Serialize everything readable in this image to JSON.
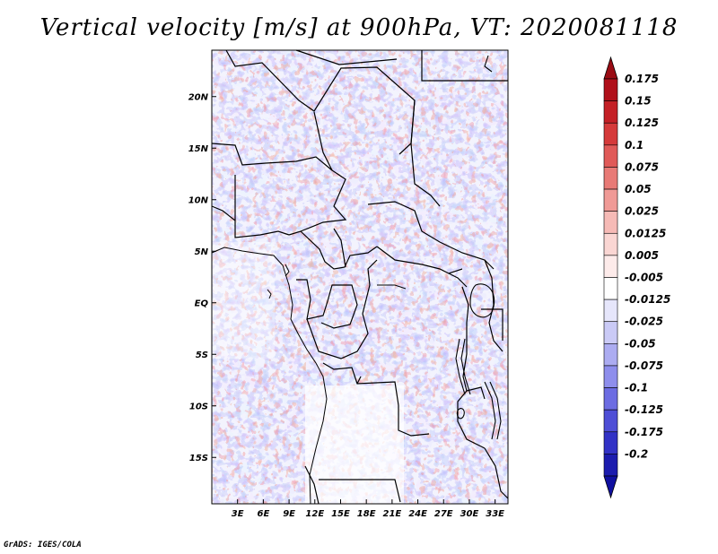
{
  "title": "Vertical velocity [m/s] at 900hPa, VT: 2020081118",
  "credit": "GrADS: IGES/COLA",
  "map": {
    "lon_range": [
      0,
      34.5
    ],
    "lat_range": [
      -19.5,
      24.5
    ],
    "lat_ticks": [
      {
        "value": 20,
        "label": "20N"
      },
      {
        "value": 15,
        "label": "15N"
      },
      {
        "value": 10,
        "label": "10N"
      },
      {
        "value": 5,
        "label": "5N"
      },
      {
        "value": 0,
        "label": "EQ"
      },
      {
        "value": -5,
        "label": "5S"
      },
      {
        "value": -10,
        "label": "10S"
      },
      {
        "value": -15,
        "label": "15S"
      }
    ],
    "lon_ticks": [
      {
        "value": 3,
        "label": "3E"
      },
      {
        "value": 6,
        "label": "6E"
      },
      {
        "value": 9,
        "label": "9E"
      },
      {
        "value": 12,
        "label": "12E"
      },
      {
        "value": 15,
        "label": "15E"
      },
      {
        "value": 18,
        "label": "18E"
      },
      {
        "value": 21,
        "label": "21E"
      },
      {
        "value": 24,
        "label": "24E"
      },
      {
        "value": 27,
        "label": "27E"
      },
      {
        "value": 30,
        "label": "30E"
      },
      {
        "value": 33,
        "label": "33E"
      }
    ]
  },
  "colorbar": {
    "levels": [
      {
        "label": "0.175",
        "color": "#b0101a"
      },
      {
        "label": "0.15",
        "color": "#c42026"
      },
      {
        "label": "0.125",
        "color": "#d53a3a"
      },
      {
        "label": "0.1",
        "color": "#e05a58"
      },
      {
        "label": "0.075",
        "color": "#e87a76"
      },
      {
        "label": "0.05",
        "color": "#f09a96"
      },
      {
        "label": "0.025",
        "color": "#f6bab6"
      },
      {
        "label": "0.0125",
        "color": "#fad6d3"
      },
      {
        "label": "0.005",
        "color": "#fdebea"
      },
      {
        "label": "-0.005",
        "color": "#ffffff"
      },
      {
        "label": "-0.0125",
        "color": "#e6e6fb"
      },
      {
        "label": "-0.025",
        "color": "#cacaf6"
      },
      {
        "label": "-0.05",
        "color": "#acacf1"
      },
      {
        "label": "-0.075",
        "color": "#8e8eec"
      },
      {
        "label": "-0.1",
        "color": "#6c6ce2"
      },
      {
        "label": "-0.125",
        "color": "#4e4ed6"
      },
      {
        "label": "-0.175",
        "color": "#3232c6"
      },
      {
        "label": "-0.2",
        "color": "#1c1cae"
      }
    ],
    "top_cap_color": "#9a0c14",
    "bottom_cap_color": "#1010a0"
  }
}
